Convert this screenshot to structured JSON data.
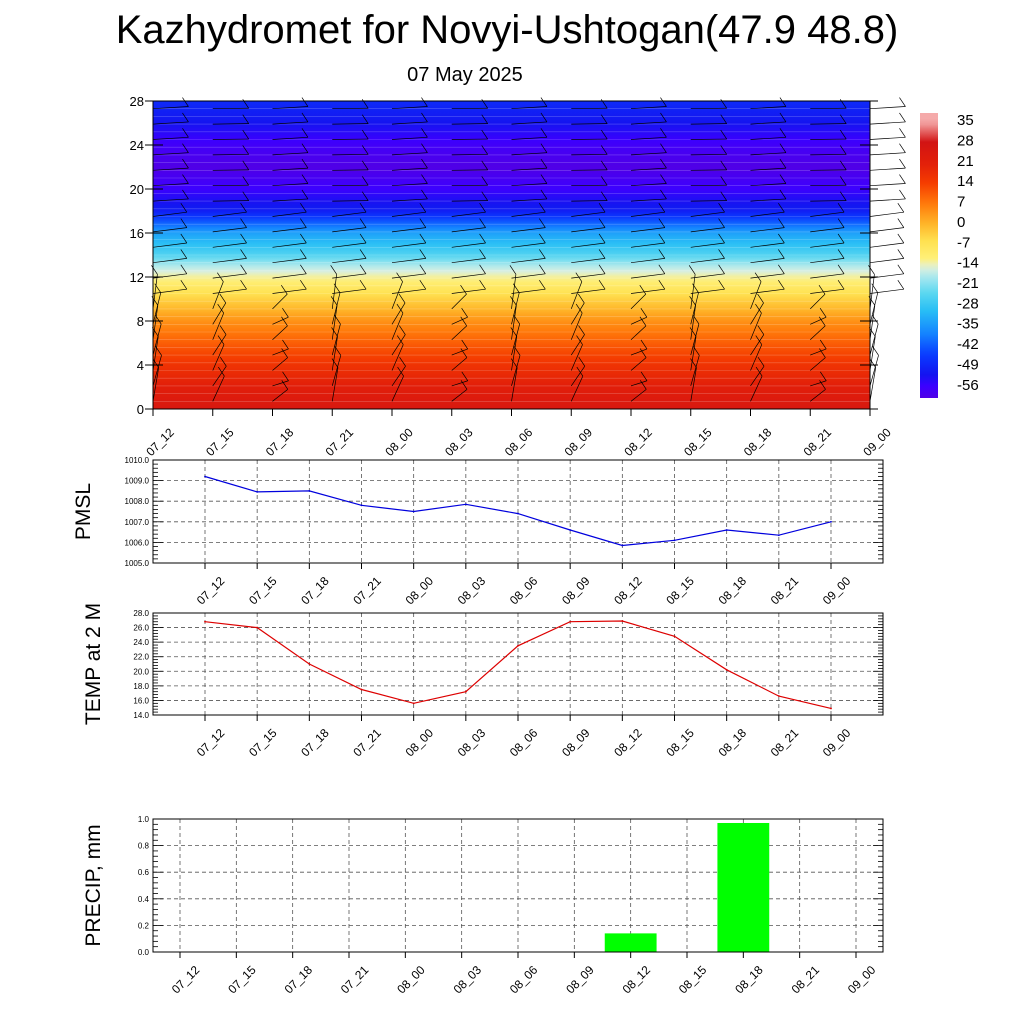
{
  "title": "Kazhydromet for Novyi-Ushtogan(47.9 48.8)",
  "subtitle": "07 May 2025",
  "time_labels": [
    "07_12",
    "07_15",
    "07_18",
    "07_21",
    "08_00",
    "08_03",
    "08_06",
    "08_09",
    "08_12",
    "08_15",
    "08_18",
    "08_21",
    "09_00"
  ],
  "colors": {
    "pmsl_line": "#0000dd",
    "temp_line": "#dd0000",
    "precip_bar": "#00ff00",
    "grid": "#555555",
    "wind_barb": "#000000"
  },
  "chart_data": [
    {
      "type": "heatmap",
      "name": "temperature-cross-section",
      "ylim": [
        0,
        28
      ],
      "yticks": [
        "0",
        "4",
        "8",
        "12",
        "16",
        "20",
        "24",
        "28"
      ],
      "x": [
        "07_12",
        "07_15",
        "07_18",
        "07_21",
        "08_00",
        "08_03",
        "08_06",
        "08_09",
        "08_12",
        "08_15",
        "08_18",
        "08_21",
        "09_00"
      ],
      "colorbar_labels": [
        "35",
        "28",
        "21",
        "14",
        "7",
        "0",
        "-7",
        "-14",
        "-21",
        "-28",
        "-35",
        "-42",
        "-49",
        "-56"
      ],
      "level_temperature_profile": [
        {
          "y": 0,
          "t": 25
        },
        {
          "y": 2,
          "t": 21
        },
        {
          "y": 4,
          "t": 16
        },
        {
          "y": 6,
          "t": 10
        },
        {
          "y": 8,
          "t": 4
        },
        {
          "y": 10,
          "t": -4
        },
        {
          "y": 12,
          "t": -13
        },
        {
          "y": 13,
          "t": -18
        },
        {
          "y": 14,
          "t": -25
        },
        {
          "y": 16,
          "t": -34
        },
        {
          "y": 17,
          "t": -42
        },
        {
          "y": 18,
          "t": -50
        },
        {
          "y": 20,
          "t": -56
        },
        {
          "y": 22,
          "t": -60
        },
        {
          "y": 24,
          "t": -57
        },
        {
          "y": 26,
          "t": -52
        },
        {
          "y": 28,
          "t": -48
        }
      ],
      "wind_barbs": "wind barbs plotted at every time step and level"
    },
    {
      "type": "line",
      "name": "PMSL",
      "ylabel": "PMSL",
      "ylim": [
        1005.0,
        1010.0
      ],
      "yticks": [
        "1005.0",
        "1006.0",
        "1007.0",
        "1008.0",
        "1009.0",
        "1010.0"
      ],
      "x": [
        "07_12",
        "07_15",
        "07_18",
        "07_21",
        "08_00",
        "08_03",
        "08_06",
        "08_09",
        "08_12",
        "08_15",
        "08_18",
        "08_21",
        "09_00"
      ],
      "values": [
        1009.2,
        1008.45,
        1008.5,
        1007.8,
        1007.5,
        1007.85,
        1007.4,
        1006.6,
        1005.85,
        1006.1,
        1006.6,
        1006.35,
        1007.0
      ]
    },
    {
      "type": "line",
      "name": "TEMP at 2 M",
      "ylabel": "TEMP at 2 M",
      "ylim": [
        14.0,
        28.0
      ],
      "yticks": [
        "14.0",
        "16.0",
        "18.0",
        "20.0",
        "22.0",
        "24.0",
        "26.0",
        "28.0"
      ],
      "x": [
        "07_12",
        "07_15",
        "07_18",
        "07_21",
        "08_00",
        "08_03",
        "08_06",
        "08_09",
        "08_12",
        "08_15",
        "08_18",
        "08_21",
        "09_00"
      ],
      "values": [
        26.8,
        26.0,
        21.0,
        17.5,
        15.6,
        17.2,
        23.5,
        26.8,
        26.9,
        24.8,
        20.2,
        16.6,
        14.9
      ]
    },
    {
      "type": "bar",
      "name": "PRECIP",
      "ylabel": "PRECIP, mm",
      "ylim": [
        0.0,
        1.0
      ],
      "yticks": [
        "0.0",
        "0.2",
        "0.4",
        "0.6",
        "0.8",
        "1.0"
      ],
      "x": [
        "07_12",
        "07_15",
        "07_18",
        "07_21",
        "08_00",
        "08_03",
        "08_06",
        "08_09",
        "08_12",
        "08_15",
        "08_18",
        "08_21",
        "09_00"
      ],
      "values": [
        0,
        0,
        0,
        0,
        0,
        0,
        0,
        0,
        0.14,
        0,
        0.97,
        0,
        0
      ]
    }
  ]
}
